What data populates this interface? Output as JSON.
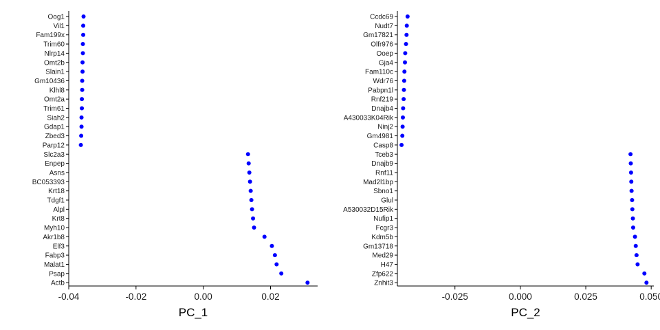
{
  "chart_data": [
    {
      "type": "scatter",
      "xlabel": "PC_1",
      "ylabel": "",
      "xlim": [
        -0.04,
        0.034
      ],
      "xticks": [
        -0.04,
        -0.02,
        0.0,
        0.02
      ],
      "xtick_labels": [
        "-0.04",
        "-0.02",
        "0.00",
        "0.02"
      ],
      "grid": false,
      "point_color": "#0000ff",
      "genes": [
        "Oog1",
        "Vil1",
        "Fam199x",
        "Trim60",
        "Nlrp14",
        "Omt2b",
        "Slain1",
        "Gm10436",
        "Klhl8",
        "Omt2a",
        "Trim61",
        "Siah2",
        "Gdap1",
        "Zbed3",
        "Parp12",
        "Slc2a3",
        "Enpep",
        "Asns",
        "BC053393",
        "Krt18",
        "Tdgf1",
        "Alpl",
        "Krt8",
        "Myh10",
        "Akr1b8",
        "Elf3",
        "Fabp3",
        "Malat1",
        "Psap",
        "Actb"
      ],
      "values": [
        -0.0356,
        -0.0357,
        -0.0357,
        -0.0358,
        -0.0358,
        -0.0359,
        -0.0359,
        -0.036,
        -0.036,
        -0.0361,
        -0.0361,
        -0.0362,
        -0.0362,
        -0.0363,
        -0.0364,
        0.0133,
        0.0135,
        0.0137,
        0.0139,
        0.0141,
        0.0143,
        0.0145,
        0.0148,
        0.0151,
        0.0182,
        0.0204,
        0.0213,
        0.0218,
        0.0232,
        0.031
      ]
    },
    {
      "type": "scatter",
      "xlabel": "PC_2",
      "ylabel": "",
      "xlim": [
        -0.047,
        0.051
      ],
      "xticks": [
        -0.025,
        0.0,
        0.025,
        0.05
      ],
      "xtick_labels": [
        "-0.025",
        "0.000",
        "0.025",
        "0.050"
      ],
      "grid": false,
      "point_color": "#0000ff",
      "genes": [
        "Ccdc69",
        "Nudt7",
        "Gm17821",
        "Olfr976",
        "Ooep",
        "Gja4",
        "Fam110c",
        "Wdr76",
        "Pabpn1l",
        "Rnf219",
        "Dnajb4",
        "A430033K04Rik",
        "Ninj2",
        "Gm4981",
        "Casp8",
        "Tceb3",
        "Dnajb9",
        "Rnf11",
        "Mad2l1bp",
        "Sbno1",
        "Glul",
        "A530032D15Rik",
        "Nufip1",
        "Fcgr3",
        "Kdm5b",
        "Gm13718",
        "Med29",
        "H47",
        "Zfp622",
        "Znhit3"
      ],
      "values": [
        -0.0431,
        -0.0434,
        -0.0435,
        -0.0437,
        -0.044,
        -0.0441,
        -0.0443,
        -0.0444,
        -0.0445,
        -0.0446,
        -0.0448,
        -0.0449,
        -0.045,
        -0.0451,
        -0.0454,
        0.0421,
        0.0422,
        0.0423,
        0.0424,
        0.0425,
        0.0427,
        0.0428,
        0.043,
        0.0431,
        0.0438,
        0.0441,
        0.0444,
        0.0448,
        0.0474,
        0.0482
      ]
    }
  ]
}
